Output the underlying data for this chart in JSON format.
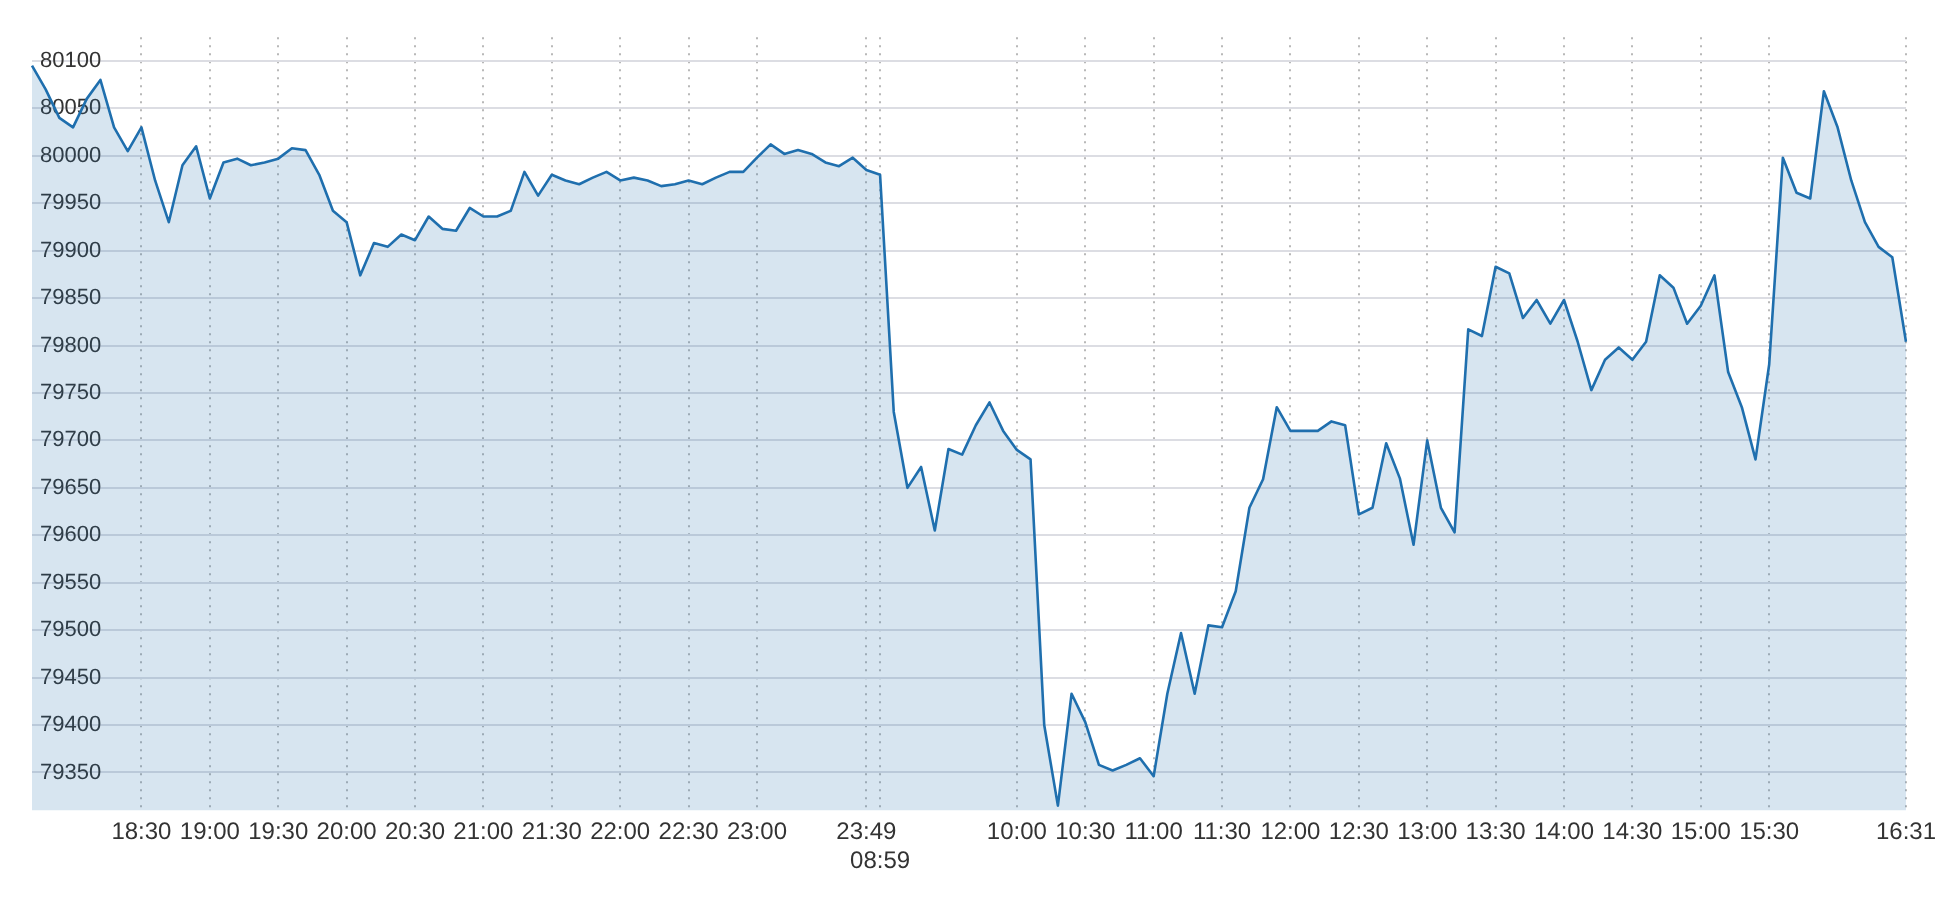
{
  "chart_data": {
    "type": "area",
    "categories": [
      null,
      null,
      null,
      null,
      null,
      null,
      null,
      null,
      "18:30",
      null,
      null,
      null,
      null,
      "19:00",
      null,
      null,
      null,
      null,
      "19:30",
      null,
      null,
      null,
      null,
      "20:00",
      null,
      null,
      null,
      null,
      "20:30",
      null,
      null,
      null,
      null,
      "21:00",
      null,
      null,
      null,
      null,
      "21:30",
      null,
      null,
      null,
      null,
      "22:00",
      null,
      null,
      null,
      null,
      "22:30",
      null,
      null,
      null,
      null,
      "23:00",
      null,
      null,
      null,
      null,
      null,
      null,
      null,
      "23:49",
      "08:59",
      null,
      null,
      null,
      null,
      null,
      null,
      null,
      null,
      null,
      "10:00",
      null,
      null,
      null,
      null,
      "10:30",
      null,
      null,
      null,
      null,
      "11:00",
      null,
      null,
      null,
      null,
      "11:30",
      null,
      null,
      null,
      null,
      "12:00",
      null,
      null,
      null,
      null,
      "12:30",
      null,
      null,
      null,
      null,
      "13:00",
      null,
      null,
      null,
      null,
      "13:30",
      null,
      null,
      null,
      null,
      "14:00",
      null,
      null,
      null,
      null,
      "14:30",
      null,
      null,
      null,
      null,
      "15:00",
      null,
      null,
      null,
      null,
      "15:30",
      null,
      null,
      null,
      null,
      null,
      null,
      null,
      null,
      null,
      "16:31"
    ],
    "series": [
      {
        "color": "#1f6fae",
        "values": [
          80095,
          80070,
          80040,
          80030,
          80060,
          80080,
          80030,
          80005,
          80030,
          79974,
          79930,
          79990,
          80010,
          79955,
          79993,
          79997,
          79990,
          79993,
          79997,
          80008,
          80006,
          79980,
          79942,
          79930,
          79874,
          79908,
          79904,
          79917,
          79911,
          79936,
          79923,
          79921,
          79945,
          79936,
          79936,
          79942,
          79983,
          79958,
          79980,
          79974,
          79970,
          79977,
          79983,
          79974,
          79977,
          79974,
          79968,
          79970,
          79974,
          79970,
          79977,
          79983,
          79983,
          79998,
          80012,
          80002,
          80006,
          80002,
          79993,
          79989,
          79998,
          79985,
          79980,
          79730,
          79650,
          79672,
          79605,
          79691,
          79685,
          79716,
          79740,
          79710,
          79690,
          79680,
          79400,
          79315,
          79433,
          79403,
          79358,
          79352,
          79358,
          79365,
          79346,
          79433,
          79497,
          79433,
          79505,
          79503,
          79541,
          79629,
          79659,
          79735,
          79710,
          79710,
          79710,
          79720,
          79716,
          79622,
          79629,
          79697,
          79660,
          79590,
          79700,
          79629,
          79603,
          79817,
          79810,
          79883,
          79876,
          79829,
          79848,
          79823,
          79848,
          79804,
          79753,
          79785,
          79798,
          79785,
          79804,
          79874,
          79861,
          79823,
          79842,
          79874,
          79772,
          79735,
          79680,
          79780,
          79998,
          79961,
          79955,
          80068,
          80030,
          79974,
          79930,
          79904,
          79893,
          79804
        ]
      }
    ],
    "ylim": [
      79310,
      80125
    ],
    "yticks": [
      79350,
      79400,
      79450,
      79500,
      79550,
      79600,
      79650,
      79700,
      79750,
      79800,
      79850,
      79900,
      79950,
      80000,
      80050,
      80100
    ],
    "grid": true,
    "legend": false,
    "marker": "none",
    "line_style": "solid"
  }
}
